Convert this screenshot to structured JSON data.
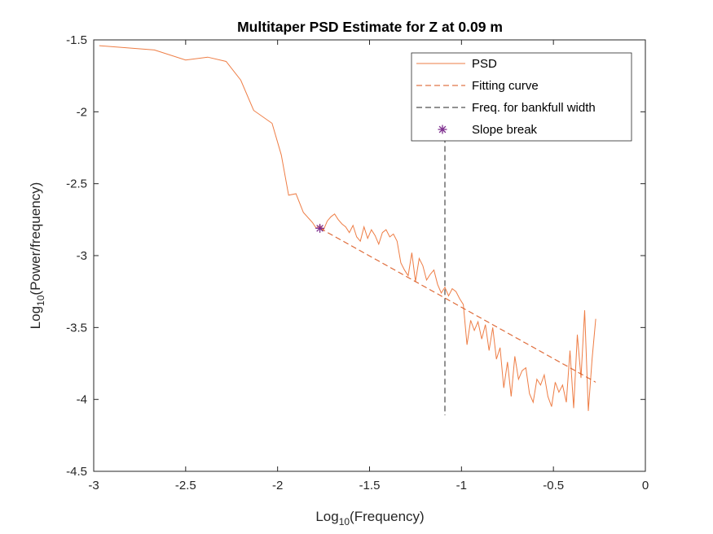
{
  "chart_data": {
    "type": "line",
    "title": "Multitaper PSD Estimate for Z at 0.09 m",
    "xlabel": {
      "prefix": "Log",
      "sub": "10",
      "suffix": "(Frequency)"
    },
    "ylabel": {
      "prefix": "Log",
      "sub": "10",
      "suffix": "(Power/frequency)"
    },
    "xlim": [
      -3,
      0
    ],
    "ylim": [
      -4.5,
      -1.5
    ],
    "xticks": [
      -3,
      -2.5,
      -2,
      -1.5,
      -1,
      -0.5,
      0
    ],
    "xtick_labels": [
      "-3",
      "-2.5",
      "-2",
      "-1.5",
      "-1",
      "-0.5",
      "0"
    ],
    "yticks": [
      -4.5,
      -4,
      -3.5,
      -3,
      -2.5,
      -2,
      -1.5
    ],
    "ytick_labels": [
      "-4.5",
      "-4",
      "-3.5",
      "-3",
      "-2.5",
      "-2",
      "-1.5"
    ],
    "grid": false,
    "legend_position": "top-right",
    "colors": {
      "psd": "#ee7d45",
      "fit": "#d95319",
      "bankfull": "#262626",
      "slope_break": "#7e2f8e"
    },
    "series": [
      {
        "name": "PSD",
        "style": "solid",
        "x": [
          -2.97,
          -2.67,
          -2.5,
          -2.38,
          -2.28,
          -2.2,
          -2.13,
          -2.03,
          -1.98,
          -1.94,
          -1.9,
          -1.86,
          -1.81,
          -1.79,
          -1.77,
          -1.75,
          -1.73,
          -1.71,
          -1.69,
          -1.67,
          -1.65,
          -1.63,
          -1.61,
          -1.59,
          -1.57,
          -1.55,
          -1.53,
          -1.51,
          -1.49,
          -1.47,
          -1.45,
          -1.43,
          -1.41,
          -1.39,
          -1.37,
          -1.35,
          -1.33,
          -1.31,
          -1.29,
          -1.27,
          -1.25,
          -1.23,
          -1.21,
          -1.19,
          -1.17,
          -1.15,
          -1.13,
          -1.11,
          -1.09,
          -1.07,
          -1.05,
          -1.03,
          -1.01,
          -0.99,
          -0.97,
          -0.95,
          -0.93,
          -0.91,
          -0.89,
          -0.87,
          -0.85,
          -0.83,
          -0.81,
          -0.79,
          -0.77,
          -0.75,
          -0.73,
          -0.71,
          -0.69,
          -0.67,
          -0.65,
          -0.63,
          -0.61,
          -0.59,
          -0.57,
          -0.55,
          -0.53,
          -0.51,
          -0.49,
          -0.47,
          -0.45,
          -0.43,
          -0.41,
          -0.39,
          -0.37,
          -0.35,
          -0.33,
          -0.31,
          -0.29,
          -0.27
        ],
        "y": [
          -1.54,
          -1.57,
          -1.64,
          -1.62,
          -1.65,
          -1.78,
          -1.99,
          -2.08,
          -2.3,
          -2.58,
          -2.57,
          -2.7,
          -2.77,
          -2.81,
          -2.79,
          -2.82,
          -2.76,
          -2.73,
          -2.71,
          -2.75,
          -2.78,
          -2.8,
          -2.84,
          -2.79,
          -2.87,
          -2.9,
          -2.8,
          -2.88,
          -2.82,
          -2.86,
          -2.92,
          -2.84,
          -2.82,
          -2.87,
          -2.85,
          -2.9,
          -3.05,
          -3.1,
          -3.14,
          -2.98,
          -3.18,
          -3.02,
          -3.07,
          -3.17,
          -3.13,
          -3.1,
          -3.2,
          -3.26,
          -3.22,
          -3.28,
          -3.23,
          -3.25,
          -3.3,
          -3.34,
          -3.62,
          -3.45,
          -3.52,
          -3.46,
          -3.58,
          -3.48,
          -3.66,
          -3.5,
          -3.72,
          -3.64,
          -3.92,
          -3.74,
          -3.98,
          -3.7,
          -3.86,
          -3.8,
          -3.78,
          -3.96,
          -4.02,
          -3.86,
          -3.9,
          -3.83,
          -3.98,
          -4.05,
          -3.88,
          -3.95,
          -3.9,
          -4.02,
          -3.66,
          -4.06,
          -3.55,
          -3.85,
          -3.38,
          -4.08,
          -3.72,
          -3.44
        ]
      },
      {
        "name": "Fitting curve",
        "style": "dashed",
        "x": [
          -1.77,
          -0.27
        ],
        "y": [
          -2.81,
          -3.88
        ]
      },
      {
        "name": "Freq. for bankfull width",
        "style": "dashed",
        "x": [
          -1.09,
          -1.09
        ],
        "y": [
          -1.74,
          -4.11
        ]
      },
      {
        "name": "Slope break",
        "style": "marker",
        "x": [
          -1.77
        ],
        "y": [
          -2.81
        ]
      }
    ]
  }
}
